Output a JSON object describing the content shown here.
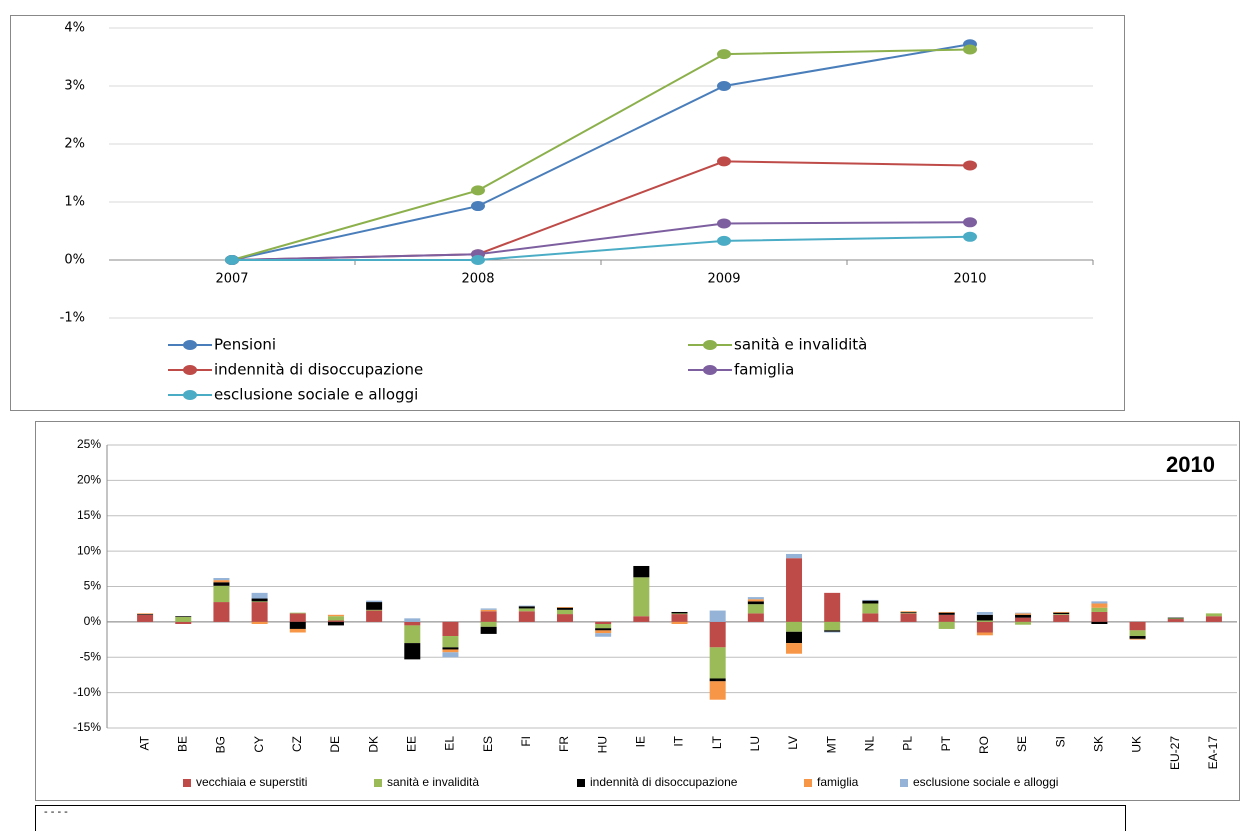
{
  "chart_data": [
    {
      "type": "line",
      "categories": [
        "2007",
        "2008",
        "2009",
        "2010"
      ],
      "ylim": [
        -1,
        4
      ],
      "yticks": [
        {
          "value": -1,
          "label": "-1%"
        },
        {
          "value": 0,
          "label": "0%"
        },
        {
          "value": 1,
          "label": "1%"
        },
        {
          "value": 2,
          "label": "2%"
        },
        {
          "value": 3,
          "label": "3%"
        },
        {
          "value": 4,
          "label": "4%"
        }
      ],
      "grid": true,
      "series": [
        {
          "name": "Pensioni",
          "color": "#4a7ebb",
          "values": [
            0,
            0.93,
            3.0,
            3.72
          ]
        },
        {
          "name": "sanità e invalidità",
          "color": "#8cb04c",
          "values": [
            0,
            1.2,
            3.55,
            3.63
          ]
        },
        {
          "name": "indennità di disoccupazione",
          "color": "#be4b48",
          "values": [
            0,
            0.1,
            1.7,
            1.63
          ]
        },
        {
          "name": "famiglia",
          "color": "#7d5fa0",
          "values": [
            0,
            0.1,
            0.63,
            0.65
          ]
        },
        {
          "name": "esclusione sociale e alloggi",
          "color": "#4bacc6",
          "values": [
            0,
            0,
            0.33,
            0.4
          ]
        }
      ]
    },
    {
      "type": "bar",
      "stacked": true,
      "title": "2010",
      "categories": [
        "AT",
        "BE",
        "BG",
        "CY",
        "CZ",
        "DE",
        "DK",
        "EE",
        "EL",
        "ES",
        "FI",
        "FR",
        "HU",
        "IE",
        "IT",
        "LT",
        "LU",
        "LV",
        "MT",
        "NL",
        "PL",
        "PT",
        "RO",
        "SE",
        "SI",
        "SK",
        "UK",
        "EU-27",
        "EA-17"
      ],
      "ylim": [
        -15,
        25
      ],
      "yticks": [
        {
          "value": -15,
          "label": "-15%"
        },
        {
          "value": -10,
          "label": "-10%"
        },
        {
          "value": -5,
          "label": "-5%"
        },
        {
          "value": 0,
          "label": "0%"
        },
        {
          "value": 5,
          "label": "5%"
        },
        {
          "value": 10,
          "label": "10%"
        },
        {
          "value": 15,
          "label": "15%"
        },
        {
          "value": 20,
          "label": "20%"
        },
        {
          "value": 25,
          "label": "25%"
        }
      ],
      "grid": true,
      "series": [
        {
          "name": "vecchiaia e superstiti",
          "color": "#be4b48",
          "values": [
            1.0,
            -0.3,
            2.8,
            2.8,
            1.2,
            0.2,
            1.6,
            -0.5,
            -2.0,
            1.5,
            1.5,
            1.1,
            -0.3,
            0.8,
            1.1,
            -3.6,
            1.2,
            9.0,
            4.1,
            1.2,
            1.2,
            1.0,
            -1.5,
            0.6,
            1.0,
            1.4,
            -1.2,
            0.4,
            0.8
          ]
        },
        {
          "name": "sanità e invalidità",
          "color": "#9bbb59",
          "values": [
            0,
            0.7,
            2.3,
            0.1,
            0.1,
            0.6,
            0.1,
            -2.5,
            -1.6,
            -0.7,
            0.4,
            0.6,
            -0.6,
            5.5,
            0.1,
            -4.4,
            1.3,
            -1.4,
            -1.2,
            1.4,
            0.1,
            -1.0,
            0.2,
            -0.4,
            0.1,
            0.6,
            -0.8,
            0.1,
            0.4
          ]
        },
        {
          "name": "indennità di disoccupazione",
          "color": "#000000",
          "values": [
            0.1,
            0.1,
            0.5,
            0.4,
            -1.0,
            -0.5,
            1.1,
            -2.3,
            -0.3,
            -1.0,
            0.3,
            0.3,
            -0.3,
            1.6,
            0.2,
            -0.4,
            0.4,
            -1.6,
            -0.2,
            0.4,
            0.1,
            0.3,
            0.8,
            0.4,
            0.2,
            -0.3,
            -0.4,
            0.1,
            0
          ]
        },
        {
          "name": "famiglia",
          "color": "#f79646",
          "values": [
            0.1,
            0,
            0.3,
            -0.3,
            -0.5,
            0.2,
            0,
            0,
            -0.4,
            0.2,
            0,
            0.1,
            -0.4,
            0,
            -0.3,
            -2.6,
            0.3,
            -1.5,
            0,
            0,
            0.1,
            0.1,
            -0.4,
            0.2,
            0.1,
            0.6,
            -0.1,
            0,
            0
          ]
        },
        {
          "name": "esclusione sociale e alloggi",
          "color": "#95b3d7",
          "values": [
            0,
            0,
            0.3,
            0.8,
            0,
            0,
            0.2,
            0.5,
            -0.7,
            0.2,
            0.1,
            0,
            -0.5,
            0,
            0,
            1.6,
            0.3,
            0.6,
            -0.1,
            0.1,
            0,
            0,
            0.4,
            0.1,
            0,
            0.3,
            0,
            0,
            0
          ]
        }
      ]
    }
  ],
  "note": "- - - -"
}
